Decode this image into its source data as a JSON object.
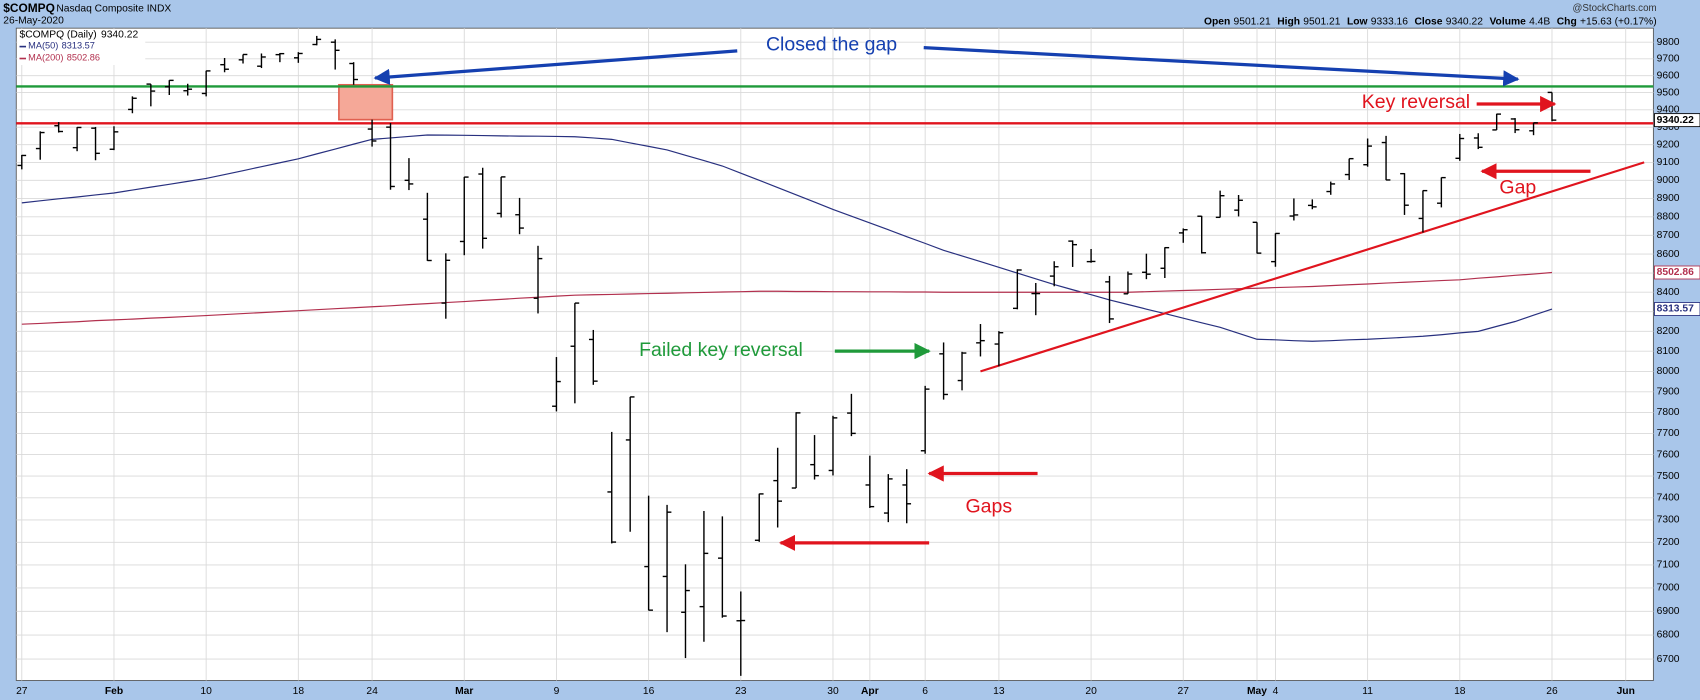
{
  "chart_data": {
    "type": "ohlc",
    "title": "$COMPQ",
    "subtitle": "Nasdaq Composite INDX",
    "date": "26-May-2020",
    "source": "@StockCharts.com",
    "price_label": "$COMPQ (Daily)",
    "quote_labels": [
      "Open",
      "High",
      "Low",
      "Close",
      "Volume",
      "Chg"
    ],
    "volume": "4.4B",
    "change": "+15.63 (+0.17%)",
    "bar_color": "#000000",
    "opens": [
      9083,
      9178,
      9308,
      9183,
      9294,
      9174,
      9402,
      9550,
      9534,
      9511,
      9495,
      9665,
      9694,
      9656,
      9725,
      9706,
      9786,
      9800,
      9672,
      9289,
      9300,
      9000,
      8787,
      8344,
      8667,
      9035,
      8818,
      8811,
      8369,
      7830,
      8125,
      8159,
      7427,
      7669,
      7093,
      7050,
      6896,
      6920,
      7130,
      6860,
      7209,
      7479,
      7445,
      7553,
      7526,
      7797,
      7459,
      7331,
      7459,
      7618,
      8087,
      7955,
      8142,
      8136,
      8317,
      8393,
      8484,
      8669,
      8560,
      8454,
      8392,
      8504,
      8525,
      8713,
      8803,
      8797,
      8836,
      8770,
      8560,
      8804,
      8862,
      8938,
      9032,
      9087,
      9212,
      9037,
      8791,
      8874,
      9123,
      9238,
      9284,
      9347,
      9279,
      9501.21
    ],
    "highs": [
      9142,
      9276,
      9329,
      9300,
      9301,
      9305,
      9478,
      9550,
      9573,
      9552,
      9629,
      9705,
      9726,
      9732,
      9735,
      9740,
      9838,
      9817,
      9680,
      9343,
      9324,
      9124,
      8931,
      8604,
      9019,
      9070,
      9019,
      8903,
      8644,
      8071,
      8344,
      8207,
      7707,
      7875,
      7410,
      7368,
      7103,
      7340,
      7316,
      6985,
      7419,
      7632,
      7801,
      7692,
      7784,
      7890,
      7595,
      7509,
      7532,
      7929,
      8144,
      8097,
      8237,
      8201,
      8520,
      8448,
      8562,
      8673,
      8627,
      8485,
      8508,
      8602,
      8636,
      8737,
      8805,
      8943,
      8919,
      8770,
      8711,
      8900,
      8895,
      8993,
      9121,
      9235,
      9250,
      9040,
      8944,
      9016,
      9261,
      9265,
      9377,
      9352,
      9325,
      9501.21
    ],
    "lows": [
      9061,
      9115,
      9269,
      9163,
      9112,
      9169,
      9380,
      9420,
      9486,
      9483,
      9478,
      9620,
      9672,
      9645,
      9680,
      9676,
      9781,
      9636,
      9546,
      9189,
      8948,
      8946,
      8564,
      8264,
      8594,
      8629,
      8796,
      8706,
      8291,
      7805,
      7844,
      7934,
      7195,
      7247,
      6904,
      6812,
      6704,
      6772,
      6873,
      6631,
      7202,
      7266,
      7445,
      7484,
      7503,
      7687,
      7354,
      7290,
      7285,
      7604,
      7862,
      7907,
      8074,
      8025,
      8312,
      8282,
      8431,
      8532,
      8554,
      8242,
      8392,
      8468,
      8474,
      8660,
      8603,
      8796,
      8802,
      8603,
      8533,
      8780,
      8841,
      8920,
      9002,
      9076,
      9001,
      8810,
      8715,
      8851,
      9109,
      9175,
      9284,
      9266,
      9254,
      9333.16
    ],
    "closes": [
      9139,
      9269,
      9275,
      9298,
      9151,
      9273,
      9467,
      9509,
      9572,
      9520,
      9628,
      9638,
      9726,
      9711,
      9731,
      9732,
      9817,
      9751,
      9577,
      9221,
      8966,
      8980,
      8566,
      8567,
      9018,
      8684,
      9019,
      8739,
      8576,
      7950,
      8344,
      7952,
      7201,
      7875,
      6905,
      7335,
      6989,
      7151,
      6880,
      6861,
      7418,
      7385,
      7798,
      7502,
      7774,
      7700,
      7360,
      7487,
      7373,
      7913,
      7887,
      8091,
      8153,
      8193,
      8516,
      8393,
      8533,
      8650,
      8561,
      8263,
      8495,
      8494,
      8634,
      8730,
      8607,
      8915,
      8890,
      8605,
      8710,
      8810,
      8854,
      8980,
      9121,
      9192,
      9002,
      8863,
      8943,
      9015,
      9235,
      9185,
      9375,
      9285,
      9324.59,
      9340.22
    ],
    "series": [
      {
        "name": "MA(50)",
        "color": "#28307f",
        "values": [
          8876,
          8887,
          8898,
          8908,
          8919,
          8930,
          8946,
          8962,
          8978,
          8994,
          9010,
          9032,
          9054,
          9076,
          9098,
          9120,
          9148,
          9175,
          9203,
          9230,
          9238,
          9247,
          9255,
          9254,
          9253,
          9252,
          9250,
          9249,
          9248,
          9247,
          9245,
          9238,
          9230,
          9210,
          9190,
          9170,
          9140,
          9110,
          9080,
          9040,
          9000,
          8960,
          8920,
          8880,
          8840,
          8803,
          8767,
          8730,
          8693,
          8657,
          8620,
          8590,
          8560,
          8530,
          8500,
          8470,
          8440,
          8413,
          8387,
          8360,
          8337,
          8313,
          8290,
          8267,
          8243,
          8220,
          8190,
          8160,
          8157,
          8153,
          8150,
          8153,
          8157,
          8160,
          8165,
          8170,
          8175,
          8183,
          8192,
          8200,
          8225,
          8250,
          8282,
          8313.57
        ]
      },
      {
        "name": "MA(200)",
        "color": "#b2304e",
        "values": [
          8236,
          8240,
          8245,
          8249,
          8254,
          8258,
          8262,
          8267,
          8271,
          8276,
          8280,
          8285,
          8290,
          8295,
          8300,
          8305,
          8310,
          8315,
          8320,
          8325,
          8330,
          8336,
          8341,
          8347,
          8352,
          8358,
          8363,
          8369,
          8374,
          8380,
          8385,
          8387,
          8389,
          8391,
          8393,
          8395,
          8397,
          8399,
          8401,
          8403,
          8405,
          8405,
          8404,
          8404,
          8403,
          8403,
          8402,
          8402,
          8401,
          8401,
          8400,
          8400,
          8400,
          8400,
          8400,
          8400,
          8400,
          8400,
          8400,
          8400,
          8400,
          8403,
          8406,
          8409,
          8412,
          8415,
          8418,
          8421,
          8424,
          8427,
          8430,
          8434,
          8439,
          8443,
          8448,
          8452,
          8456,
          8461,
          8465,
          8473,
          8480,
          8488,
          8495,
          8502.86
        ]
      }
    ],
    "xlim": [
      -0.3,
      88.5
    ],
    "xticks": [
      {
        "value": 0,
        "label": "27"
      },
      {
        "value": 5,
        "label": "Feb"
      },
      {
        "value": 10,
        "label": "10"
      },
      {
        "value": 15,
        "label": "18"
      },
      {
        "value": 19,
        "label": "24"
      },
      {
        "value": 24,
        "label": "Mar"
      },
      {
        "value": 29,
        "label": "9"
      },
      {
        "value": 34,
        "label": "16"
      },
      {
        "value": 39,
        "label": "23"
      },
      {
        "value": 44,
        "label": "30"
      },
      {
        "value": 46,
        "label": "Apr"
      },
      {
        "value": 49,
        "label": "6"
      },
      {
        "value": 53,
        "label": "13"
      },
      {
        "value": 58,
        "label": "20"
      },
      {
        "value": 63,
        "label": "27"
      },
      {
        "value": 67,
        "label": "May"
      },
      {
        "value": 68,
        "label": "4"
      },
      {
        "value": 73,
        "label": "11"
      },
      {
        "value": 78,
        "label": "18"
      },
      {
        "value": 83,
        "label": "26"
      },
      {
        "value": 87,
        "label": "Jun"
      }
    ],
    "ylim": [
      6612,
      9885
    ],
    "yticks": [
      6700,
      6800,
      6900,
      7000,
      7100,
      7200,
      7300,
      7400,
      7500,
      7600,
      7700,
      7800,
      7900,
      8000,
      8100,
      8200,
      8300,
      8400,
      8500,
      8600,
      8700,
      8800,
      8900,
      9000,
      9100,
      9200,
      9300,
      9400,
      9500,
      9600,
      9700,
      9800
    ],
    "log_scale": true,
    "grid": true,
    "levels": [
      {
        "value": 9536,
        "color": "#1f9a3a"
      },
      {
        "value": 9322,
        "color": "#e0141e"
      }
    ],
    "trendline": {
      "x": [
        52,
        88
      ],
      "y": [
        8000,
        9100
      ],
      "color": "#e0141e"
    },
    "annotations": [
      {
        "text": "Closed the gap",
        "color": "#1540b0"
      },
      {
        "text": "Failed key reversal",
        "color": "#1f9a3a"
      },
      {
        "text": "Gaps",
        "color": "#e0141e"
      },
      {
        "text": "Key reversal",
        "color": "#e0141e"
      },
      {
        "text": "Gap",
        "color": "#e0141e"
      }
    ]
  }
}
